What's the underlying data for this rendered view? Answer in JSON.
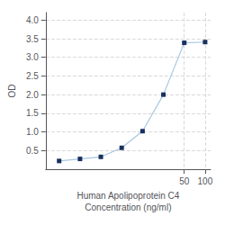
{
  "chart_data": {
    "type": "line",
    "x": [
      0.781,
      1.563,
      3.125,
      6.25,
      12.5,
      25,
      50,
      100
    ],
    "values": [
      0.221,
      0.276,
      0.331,
      0.573,
      1.02,
      2.0,
      3.39,
      3.41
    ],
    "color": "#a8c8e0",
    "marker_color": "#1a3060",
    "marker": "square",
    "line_style": "solid",
    "xlabel": "Human Apolipoprotein C4\nConcentration (ng/ml)",
    "ylabel": "OD",
    "log": "x",
    "xlim": [
      0.5,
      120
    ],
    "xticks": [
      50,
      100
    ],
    "ylim": [
      0.0,
      4.2
    ],
    "yticks": [
      0.5,
      {
        "value": 1,
        "label": "1.0"
      },
      1.5,
      {
        "value": 2,
        "label": "2.0"
      },
      2.5,
      {
        "value": 3,
        "label": "3.0"
      },
      3.5,
      {
        "value": 4,
        "label": "4.0"
      }
    ],
    "grid": true
  }
}
